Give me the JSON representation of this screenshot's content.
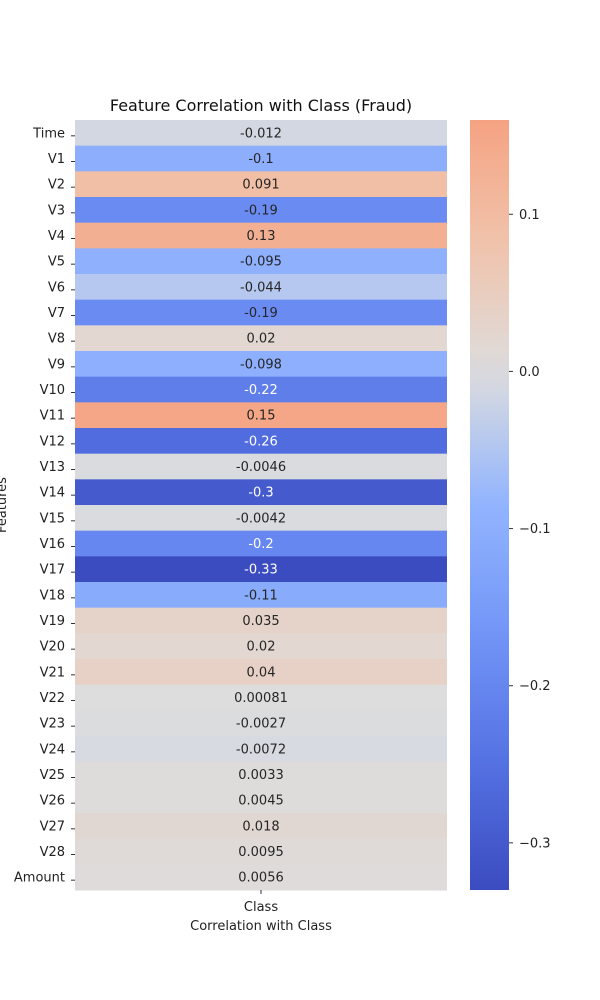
{
  "chart_data": {
    "type": "heatmap",
    "title": "Feature Correlation with Class (Fraud)",
    "xlabel": "Correlation with Class",
    "ylabel": "Features",
    "x_categories": [
      "Class"
    ],
    "y_categories": [
      "Time",
      "V1",
      "V2",
      "V3",
      "V4",
      "V5",
      "V6",
      "V7",
      "V8",
      "V9",
      "V10",
      "V11",
      "V12",
      "V13",
      "V14",
      "V15",
      "V16",
      "V17",
      "V18",
      "V19",
      "V20",
      "V21",
      "V22",
      "V23",
      "V24",
      "V25",
      "V26",
      "V27",
      "V28",
      "Amount"
    ],
    "values": [
      -0.012,
      -0.1,
      0.091,
      -0.19,
      0.13,
      -0.095,
      -0.044,
      -0.19,
      0.02,
      -0.098,
      -0.22,
      0.15,
      -0.26,
      -0.0046,
      -0.3,
      -0.0042,
      -0.2,
      -0.33,
      -0.11,
      0.035,
      0.02,
      0.04,
      0.00081,
      -0.0027,
      -0.0072,
      0.0033,
      0.0045,
      0.018,
      0.0095,
      0.0056
    ],
    "value_labels": [
      "-0.012",
      "-0.1",
      "0.091",
      "-0.19",
      "0.13",
      "-0.095",
      "-0.044",
      "-0.19",
      "0.02",
      "-0.098",
      "-0.22",
      "0.15",
      "-0.26",
      "-0.0046",
      "-0.3",
      "-0.0042",
      "-0.2",
      "-0.33",
      "-0.11",
      "0.035",
      "0.02",
      "0.04",
      "0.00081",
      "-0.0027",
      "-0.0072",
      "0.0033",
      "0.0045",
      "0.018",
      "0.0095",
      "0.0056"
    ],
    "colormap": "coolwarm",
    "colorbar": {
      "range": [
        -0.33,
        0.16
      ],
      "ticks": [
        0.1,
        0.0,
        -0.1,
        -0.2,
        -0.3
      ],
      "tick_labels": [
        "0.1",
        "0.0",
        "−0.1",
        "−0.2",
        "−0.3"
      ]
    },
    "annotations": true,
    "grid": false
  }
}
